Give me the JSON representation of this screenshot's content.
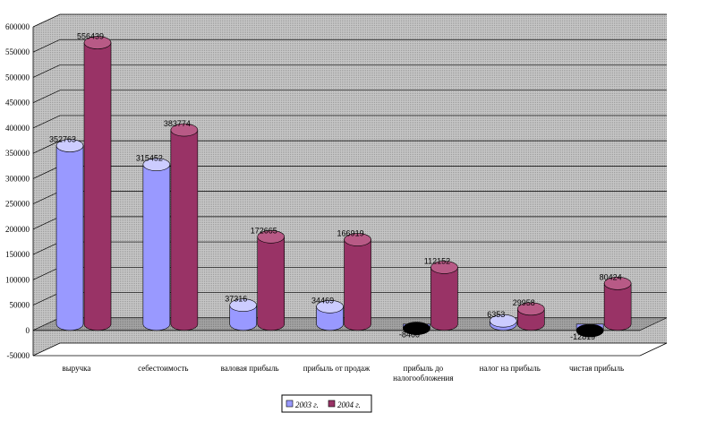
{
  "chart_data": {
    "type": "bar",
    "variant": "3d-cylinder",
    "title": "",
    "xlabel": "",
    "ylabel": "",
    "ylim": [
      -50000,
      600000
    ],
    "ytick_step": 50000,
    "yticks": [
      "-50000",
      "0",
      "50000",
      "100000",
      "150000",
      "200000",
      "250000",
      "300000",
      "350000",
      "400000",
      "450000",
      "500000",
      "550000",
      "600000"
    ],
    "grid": true,
    "legend_position": "bottom",
    "categories": [
      [
        "выручка"
      ],
      [
        "себестоимость"
      ],
      [
        "валовая прибыль"
      ],
      [
        "прибыль от продаж"
      ],
      [
        "прибыль до",
        "налогообложения"
      ],
      [
        "налог на прибыль"
      ],
      [
        "чистая прибыль"
      ]
    ],
    "series": [
      {
        "name": "2003 г.",
        "values": [
          352763,
          315452,
          37316,
          34469,
          -8466,
          6353,
          -12819
        ],
        "labels": [
          "352763",
          "315452",
          "37316",
          "34469",
          "-8466",
          "6353",
          "-12819"
        ]
      },
      {
        "name": "2004 г.",
        "values": [
          556439,
          383774,
          172665,
          166919,
          112152,
          29958,
          80424
        ],
        "labels": [
          "556439",
          "383774",
          "172665",
          "166919",
          "112152",
          "29958",
          "80424"
        ]
      }
    ],
    "colors": {
      "s1_body": "#9999ff",
      "s1_top": "#ccccff",
      "s2_body": "#993366",
      "s2_top": "#b85a86",
      "negative_top": "#000000",
      "wall": "#c8c8c8",
      "floor": "#a6a6a6",
      "grid": "#000000"
    }
  }
}
